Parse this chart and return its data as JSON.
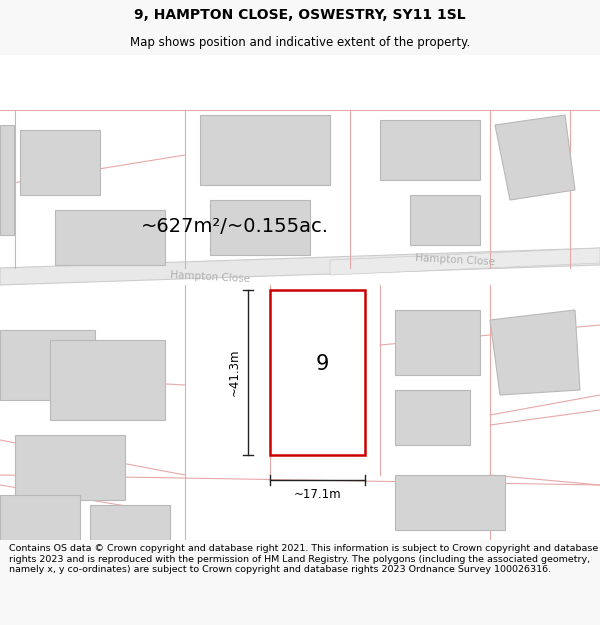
{
  "title": "9, HAMPTON CLOSE, OSWESTRY, SY11 1SL",
  "subtitle": "Map shows position and indicative extent of the property.",
  "area_label": "~627m²/~0.155ac.",
  "property_number": "9",
  "dim_height": "~41.3m",
  "dim_width": "~17.1m",
  "street_label1": "Hampton Close",
  "street_label2": "Hampton Close",
  "footer": "Contains OS data © Crown copyright and database right 2021. This information is subject to Crown copyright and database rights 2023 and is reproduced with the permission of HM Land Registry. The polygons (including the associated geometry, namely x, y co-ordinates) are subject to Crown copyright and database rights 2023 Ordnance Survey 100026316.",
  "bg_color": "#f8f8f8",
  "map_bg": "#ffffff",
  "road_fill": "#e8e8e8",
  "road_edge": "#cccccc",
  "building_fill": "#d4d4d4",
  "building_edge": "#b8b8b8",
  "plot_color": "#e8a8a8",
  "red_color": "#cc0000",
  "red_fill": "#ffffff",
  "street_color": "#b0b0b0",
  "dim_color": "#222222",
  "title_fs": 10,
  "subtitle_fs": 8.5,
  "area_fs": 14,
  "footer_fs": 6.8,
  "street_fs": 7.5,
  "number_fs": 15,
  "dim_fs": 8.5
}
